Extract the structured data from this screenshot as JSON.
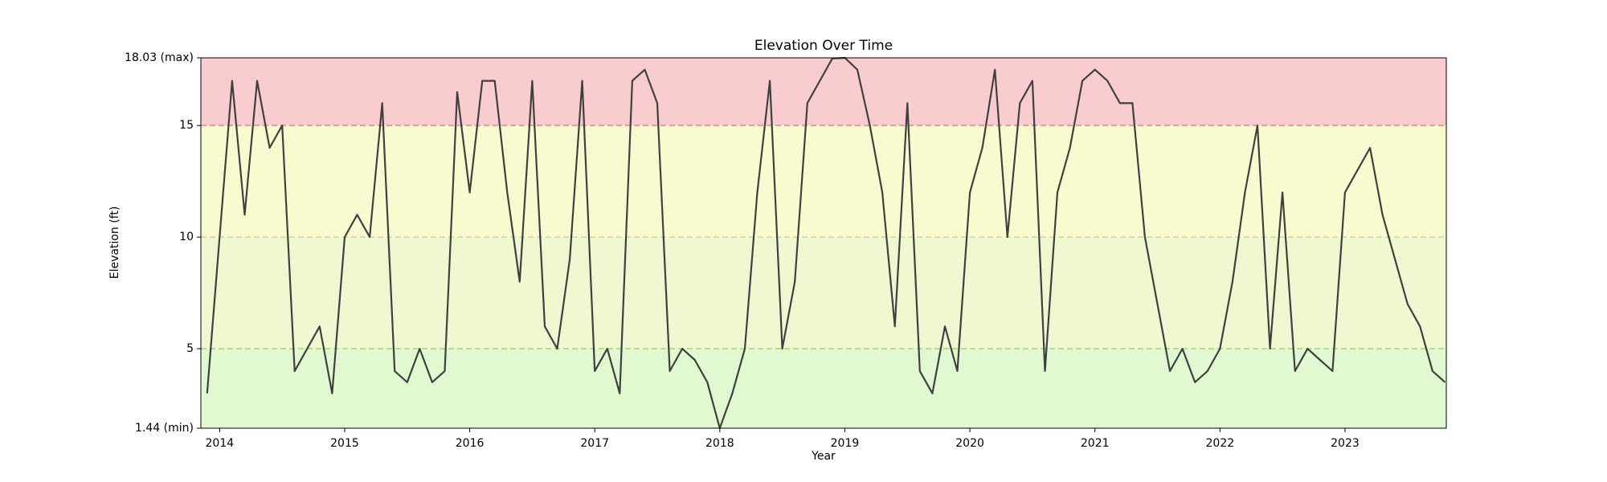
{
  "chart_data": {
    "type": "line",
    "title": "Elevation Over Time",
    "x_label": "Year",
    "y_label": "Elevation (ft)",
    "xlim": [
      2013.85,
      2023.81
    ],
    "xticks": [
      2014,
      2015,
      2016,
      2017,
      2018,
      2019,
      2020,
      2021,
      2022,
      2023
    ],
    "ylim": [
      1.44,
      18.03
    ],
    "yticks": [
      {
        "value": 1.44,
        "label": "1.44 (min)"
      },
      5,
      10,
      15,
      {
        "value": 18.03,
        "label": "18.03 (max)"
      }
    ],
    "thresholds": [
      5,
      10,
      15
    ],
    "threshold_colors": [
      "#b8d888",
      "#d4dc98",
      "#e09898"
    ],
    "band_colors": [
      "#e0f9d0",
      "#f0f8d2",
      "#fafad0",
      "#f9cccf"
    ],
    "series": [
      {
        "name": "Elevation",
        "color": "#404040",
        "x": [
          2013.9,
          2014.0,
          2014.1,
          2014.2,
          2014.3,
          2014.4,
          2014.5,
          2014.6,
          2014.7,
          2014.8,
          2014.9,
          2015.0,
          2015.1,
          2015.2,
          2015.3,
          2015.4,
          2015.5,
          2015.6,
          2015.7,
          2015.8,
          2015.9,
          2016.0,
          2016.1,
          2016.2,
          2016.3,
          2016.4,
          2016.5,
          2016.6,
          2016.7,
          2016.8,
          2016.9,
          2017.0,
          2017.1,
          2017.2,
          2017.3,
          2017.4,
          2017.5,
          2017.6,
          2017.7,
          2017.8,
          2017.9,
          2018.0,
          2018.1,
          2018.2,
          2018.3,
          2018.4,
          2018.5,
          2018.6,
          2018.7,
          2018.8,
          2018.9,
          2019.0,
          2019.1,
          2019.2,
          2019.3,
          2019.4,
          2019.5,
          2019.6,
          2019.7,
          2019.8,
          2019.9,
          2020.0,
          2020.1,
          2020.2,
          2020.3,
          2020.4,
          2020.5,
          2020.6,
          2020.7,
          2020.8,
          2020.9,
          2021.0,
          2021.1,
          2021.2,
          2021.3,
          2021.4,
          2021.5,
          2021.6,
          2021.7,
          2021.8,
          2021.9,
          2022.0,
          2022.1,
          2022.2,
          2022.3,
          2022.4,
          2022.5,
          2022.6,
          2022.7,
          2022.8,
          2022.9,
          2023.0,
          2023.1,
          2023.2,
          2023.3,
          2023.4,
          2023.5,
          2023.6,
          2023.7,
          2023.8
        ],
        "values": [
          3,
          10,
          17,
          11,
          17,
          14,
          15,
          4,
          5,
          6,
          3,
          10,
          11,
          10,
          16,
          4,
          3.5,
          5,
          3.5,
          4,
          16.5,
          12,
          17,
          17,
          12,
          8,
          17,
          6,
          5,
          9,
          17,
          4,
          5,
          3,
          17,
          17.5,
          16,
          4,
          5,
          4.5,
          3.5,
          1.44,
          3,
          5,
          12,
          17,
          5,
          8,
          16,
          17,
          18,
          18.03,
          17.5,
          15,
          12,
          6,
          16,
          4,
          3,
          6,
          4,
          12,
          14,
          17.5,
          10,
          16,
          17,
          4,
          12,
          14,
          17,
          17.5,
          17,
          16,
          16,
          10,
          7,
          4,
          5,
          3.5,
          4,
          5,
          8,
          12,
          15,
          5,
          12,
          4,
          5,
          4.5,
          4,
          12,
          13,
          14,
          11,
          9,
          7,
          6,
          4,
          3.5
        ]
      }
    ]
  }
}
